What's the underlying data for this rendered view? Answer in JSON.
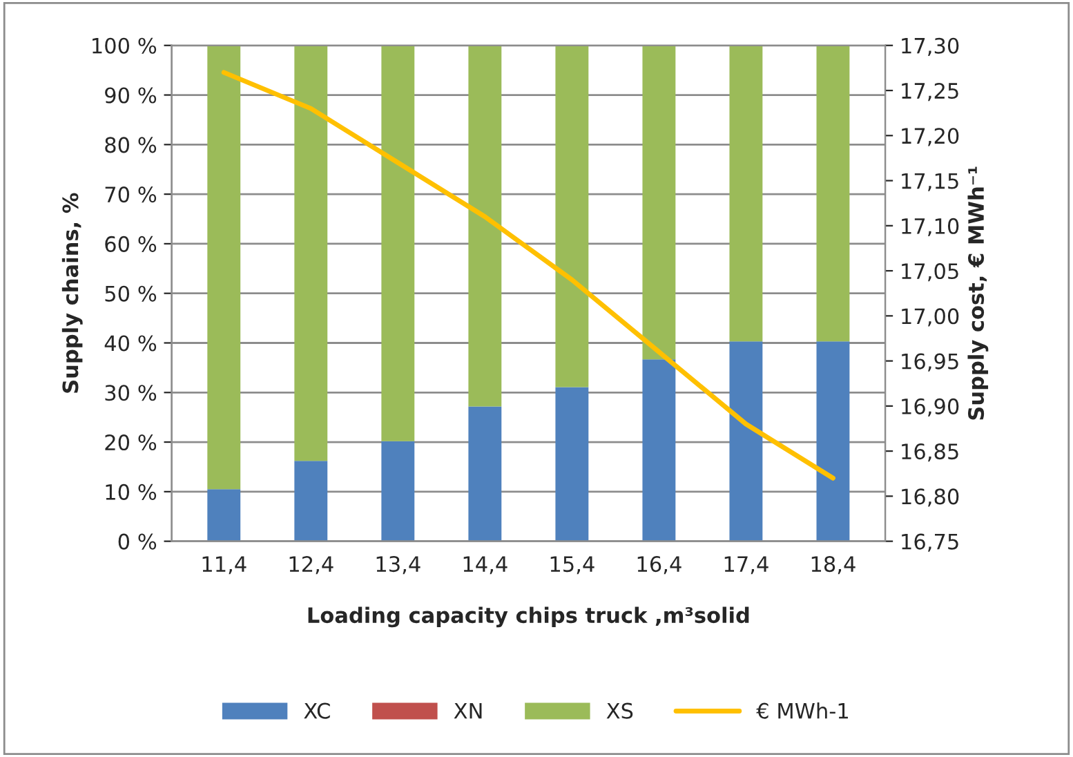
{
  "chart_data": {
    "type": "bar",
    "stacked": true,
    "xlabel": "Loading capacity chips truck ,m³solid",
    "ylabel": "Supply chains, %",
    "y2label": "Supply cost, € MWh⁻¹",
    "categories": [
      "11,4",
      "12,4",
      "13,4",
      "14,4",
      "15,4",
      "16,4",
      "17,4",
      "18,4"
    ],
    "series": [
      {
        "name": "XC",
        "color": "#4f81bd",
        "values": [
          10.5,
          16.2,
          20.2,
          27.2,
          31.1,
          36.7,
          40.3,
          40.3
        ]
      },
      {
        "name": "XN",
        "color": "#c0504d",
        "values": [
          0,
          0,
          0,
          0,
          0,
          0,
          0,
          0
        ]
      },
      {
        "name": "XS",
        "color": "#9bbb59",
        "values": [
          89.5,
          83.8,
          79.8,
          72.8,
          68.9,
          63.3,
          59.7,
          59.7
        ]
      },
      {
        "name": "€ MWh-1",
        "type": "line",
        "axis": "y2",
        "color": "#ffc000",
        "values": [
          17.27,
          17.23,
          17.17,
          17.11,
          17.04,
          16.96,
          16.88,
          16.82
        ]
      }
    ],
    "ylim": [
      0,
      100
    ],
    "yticks": [
      {
        "value": 0,
        "label": "0 %"
      },
      {
        "value": 10,
        "label": "10 %"
      },
      {
        "value": 20,
        "label": "20 %"
      },
      {
        "value": 30,
        "label": "30 %"
      },
      {
        "value": 40,
        "label": "40 %"
      },
      {
        "value": 50,
        "label": "50 %"
      },
      {
        "value": 60,
        "label": "60 %"
      },
      {
        "value": 70,
        "label": "70 %"
      },
      {
        "value": 80,
        "label": "80 %"
      },
      {
        "value": 90,
        "label": "90 %"
      },
      {
        "value": 100,
        "label": "100 %"
      }
    ],
    "y2lim": [
      16.75,
      17.3
    ],
    "y2ticks": [
      {
        "value": 16.75,
        "label": "16,75"
      },
      {
        "value": 16.8,
        "label": "16,80"
      },
      {
        "value": 16.85,
        "label": "16,85"
      },
      {
        "value": 16.9,
        "label": "16,90"
      },
      {
        "value": 16.95,
        "label": "16,95"
      },
      {
        "value": 17.0,
        "label": "17,00"
      },
      {
        "value": 17.05,
        "label": "17,05"
      },
      {
        "value": 17.1,
        "label": "17,10"
      },
      {
        "value": 17.15,
        "label": "17,15"
      },
      {
        "value": 17.2,
        "label": "17,20"
      },
      {
        "value": 17.25,
        "label": "17,25"
      },
      {
        "value": 17.3,
        "label": "17,30"
      }
    ],
    "grid": "y",
    "legend": "bottom",
    "marker": "none",
    "line_style": "solid"
  }
}
